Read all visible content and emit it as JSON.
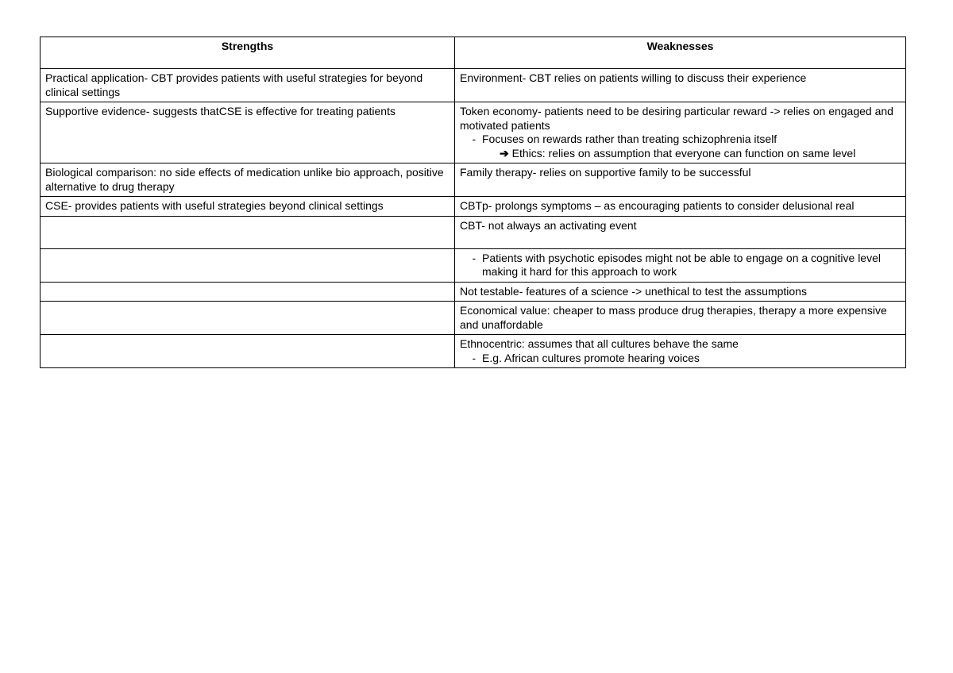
{
  "table": {
    "header_left": "Strengths",
    "header_right": "Weaknesses",
    "rows": [
      {
        "left": "Practical application- CBT provides patients with useful strategies for beyond clinical settings",
        "right": "Environment- CBT relies on patients willing to discuss their experience"
      },
      {
        "left": "Supportive evidence- suggests thatCSE is effective for treating patients",
        "right_main": "Token economy- patients need to be desiring particular reward -> relies on engaged and motivated patients",
        "right_bullet": "Focuses on rewards rather than treating schizophrenia itself",
        "right_arrow": "Ethics: relies on assumption that everyone can function on same level"
      },
      {
        "left": "Biological comparison: no side effects of medication unlike bio approach, positive alternative to drug therapy",
        "right": "Family therapy- relies on supportive family to be successful"
      },
      {
        "left": "CSE- provides patients with useful strategies beyond clinical settings",
        "right": "CBTp- prolongs symptoms – as encouraging patients to consider delusional real"
      },
      {
        "left": "",
        "right": "CBT- not always an activating event"
      },
      {
        "left": "",
        "right_bullet": "Patients with psychotic episodes might not be able to engage on a cognitive level making it hard for this approach to work"
      },
      {
        "left": "",
        "right": "Not testable- features of a science -> unethical to test the assumptions"
      },
      {
        "left": "",
        "right": "Economical value: cheaper to mass produce drug therapies, therapy a more expensive and unaffordable"
      },
      {
        "left": "",
        "right_main": "Ethnocentric: assumes that all cultures behave the same",
        "right_bullet": "E.g. African cultures promote hearing voices"
      }
    ]
  }
}
